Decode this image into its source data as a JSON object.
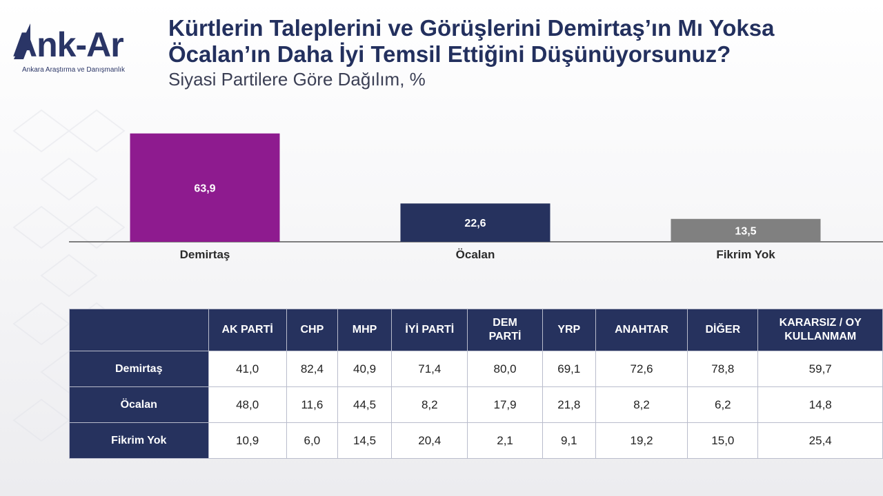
{
  "brand": {
    "name": "Ank-Ar",
    "tagline": "Ankara Araştırma ve Danışmanlık",
    "color": "#2a3566"
  },
  "header": {
    "title": "Kürtlerin Taleplerini ve Görüşlerini Demirtaş’ın Mı Yoksa Öcalan’ın Daha İyi Temsil Ettiğini Düşünüyorsunuz?",
    "subtitle": "Siyasi Partilere Göre Dağılım, %"
  },
  "chart_data": {
    "type": "bar",
    "categories": [
      "Demirtaş",
      "Öcalan",
      "Fikrim Yok"
    ],
    "values": [
      63.9,
      22.6,
      13.5
    ],
    "value_labels": [
      "63,9",
      "22,6",
      "13,5"
    ],
    "colors": [
      "#8e1b8f",
      "#26325e",
      "#808080"
    ],
    "ylim": [
      0,
      65
    ],
    "grid": false,
    "legend": "none"
  },
  "table": {
    "columns": [
      "AK PARTİ",
      "CHP",
      "MHP",
      "İYİ PARTİ",
      "DEM PARTİ",
      "YRP",
      "ANAHTAR",
      "DİĞER",
      "KARARSIZ / OY KULLANMAM"
    ],
    "rows": [
      {
        "label": "Demirtaş",
        "values": [
          "41,0",
          "82,4",
          "40,9",
          "71,4",
          "80,0",
          "69,1",
          "72,6",
          "78,8",
          "59,7"
        ]
      },
      {
        "label": "Öcalan",
        "values": [
          "48,0",
          "11,6",
          "44,5",
          "8,2",
          "17,9",
          "21,8",
          "8,2",
          "6,2",
          "14,8"
        ]
      },
      {
        "label": "Fikrim Yok",
        "values": [
          "10,9",
          "6,0",
          "14,5",
          "20,4",
          "2,1",
          "9,1",
          "19,2",
          "15,0",
          "25,4"
        ]
      }
    ]
  }
}
